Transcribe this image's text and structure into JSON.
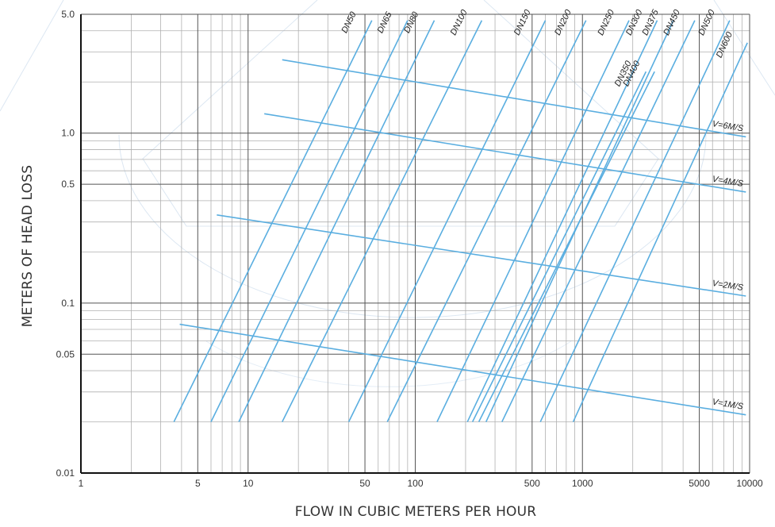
{
  "chart_data": {
    "type": "line",
    "scale": "log-log",
    "xlabel": "FLOW IN CUBIC METERS PER HOUR",
    "ylabel": "METERS OF HEAD LOSS",
    "xlim": [
      1,
      10000
    ],
    "ylim": [
      0.01,
      5.0
    ],
    "x_ticks": [
      {
        "value": 1,
        "label": "1"
      },
      {
        "value": 5,
        "label": "5"
      },
      {
        "value": 10,
        "label": "10"
      },
      {
        "value": 50,
        "label": "50"
      },
      {
        "value": 100,
        "label": "100"
      },
      {
        "value": 500,
        "label": "500"
      },
      {
        "value": 1000,
        "label": "1000"
      },
      {
        "value": 5000,
        "label": "5000"
      },
      {
        "value": 10000,
        "label": "10000"
      }
    ],
    "y_ticks": [
      {
        "value": 0.01,
        "label": "0.01"
      },
      {
        "value": 0.05,
        "label": "0.05"
      },
      {
        "value": 0.1,
        "label": "0.1"
      },
      {
        "value": 0.5,
        "label": "0.5"
      },
      {
        "value": 1.0,
        "label": "1.0"
      },
      {
        "value": 5.0,
        "label": "5.0"
      }
    ],
    "grid": true,
    "line_color": "#5aaee0",
    "pipe_series": [
      {
        "name": "DN50",
        "x": [
          3.6,
          55
        ],
        "y": [
          0.02,
          4.6
        ]
      },
      {
        "name": "DN65",
        "x": [
          6.0,
          90
        ],
        "y": [
          0.02,
          4.6
        ]
      },
      {
        "name": "DN80",
        "x": [
          8.8,
          130
        ],
        "y": [
          0.02,
          4.6
        ]
      },
      {
        "name": "DN100",
        "x": [
          16,
          250
        ],
        "y": [
          0.02,
          4.6
        ]
      },
      {
        "name": "DN150",
        "x": [
          40,
          600
        ],
        "y": [
          0.02,
          4.6
        ]
      },
      {
        "name": "DN200",
        "x": [
          68,
          1050
        ],
        "y": [
          0.02,
          4.6
        ]
      },
      {
        "name": "DN250",
        "x": [
          135,
          1900
        ],
        "y": [
          0.02,
          4.6
        ]
      },
      {
        "name": "DN300",
        "x": [
          205,
          2800
        ],
        "y": [
          0.02,
          4.6
        ]
      },
      {
        "name": "DN350",
        "x": [
          220,
          2400
        ],
        "y": [
          0.02,
          2.3
        ]
      },
      {
        "name": "DN400",
        "x": [
          240,
          2700
        ],
        "y": [
          0.02,
          2.3
        ]
      },
      {
        "name": "DN375",
        "x": [
          265,
          3500
        ],
        "y": [
          0.02,
          4.6
        ]
      },
      {
        "name": "DN450",
        "x": [
          330,
          4700
        ],
        "y": [
          0.02,
          4.6
        ]
      },
      {
        "name": "DN500",
        "x": [
          560,
          7600
        ],
        "y": [
          0.02,
          4.6
        ]
      },
      {
        "name": "DN600",
        "x": [
          880,
          9700
        ],
        "y": [
          0.02,
          3.4
        ]
      }
    ],
    "velocity_series": [
      {
        "name": "V=6M/S",
        "x": [
          16,
          9500
        ],
        "y": [
          2.7,
          0.95
        ]
      },
      {
        "name": "V=4M/S",
        "x": [
          12.5,
          9500
        ],
        "y": [
          1.3,
          0.45
        ]
      },
      {
        "name": "V=2M/S",
        "x": [
          6.5,
          9500
        ],
        "y": [
          0.33,
          0.11
        ]
      },
      {
        "name": "V=1M/S",
        "x": [
          3.9,
          9500
        ],
        "y": [
          0.075,
          0.022
        ]
      }
    ]
  }
}
